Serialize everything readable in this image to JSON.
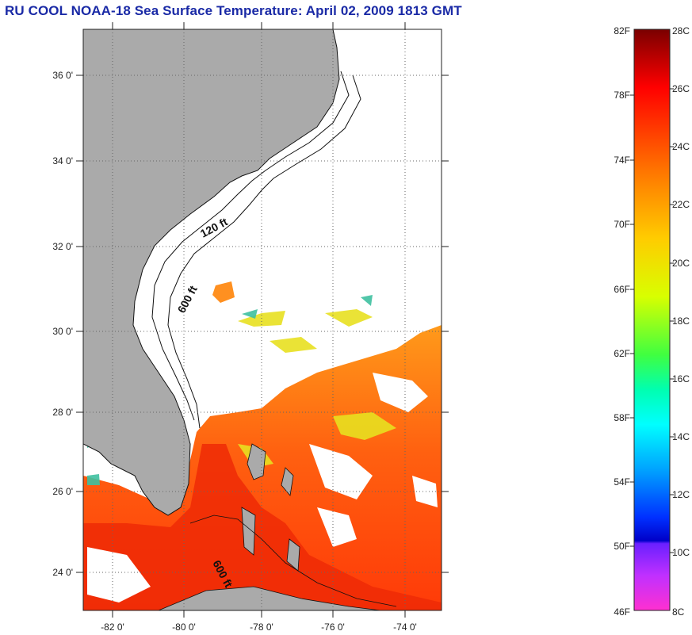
{
  "title": "RU COOL  NOAA-18  Sea Surface Temperature:  April 02, 2009 1813 GMT",
  "map": {
    "lat_labels": [
      "36 0'",
      "34 0'",
      "32 0'",
      "30 0'",
      "28 0'",
      "26 0'",
      "24 0'"
    ],
    "lon_labels": [
      "-82 0'",
      "-80 0'",
      "-78 0'",
      "-76 0'",
      "-74 0'"
    ],
    "contours": [
      "120 ft",
      "600 ft",
      "600 ft"
    ],
    "colors": {
      "land": "#aaaaaa",
      "cloud": "#ffffff"
    }
  },
  "colorbar": {
    "f_labels": [
      "82F",
      "78F",
      "74F",
      "70F",
      "66F",
      "62F",
      "58F",
      "54F",
      "50F",
      "46F"
    ],
    "c_labels": [
      "28C",
      "26C",
      "24C",
      "22C",
      "20C",
      "18C",
      "16C",
      "14C",
      "12C",
      "10C",
      "8C"
    ]
  }
}
